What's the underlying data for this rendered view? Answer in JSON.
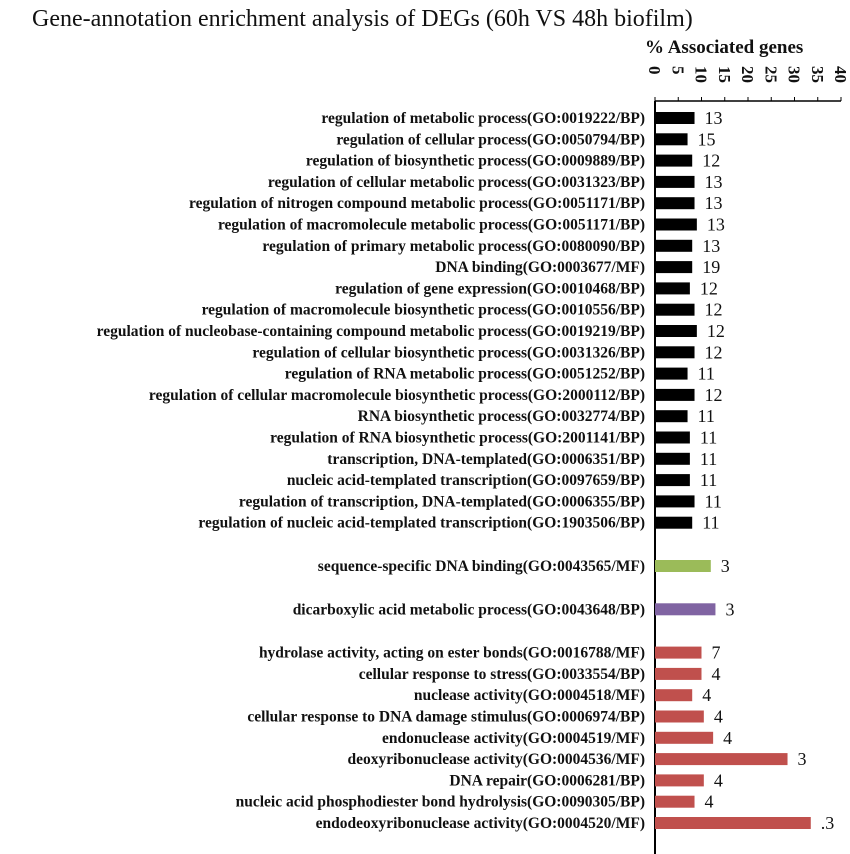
{
  "chart_data": {
    "type": "bar",
    "orientation": "horizontal",
    "title": "Gene-annotation enrichment analysis of DEGs (60h VS 48h biofilm)",
    "xlabel": "% Associated genes",
    "ylabel": "",
    "xlim": [
      0,
      40
    ],
    "x_ticks": [
      "0",
      "5",
      "10",
      "15",
      "20",
      "25",
      "30",
      "35",
      "40"
    ],
    "x_axis_position": "top",
    "grid": false,
    "legend": "none",
    "groups": [
      {
        "color": "#000000",
        "categories": [
          "regulation of metabolic process(GO:0019222/BP)",
          "regulation of cellular process(GO:0050794/BP)",
          "regulation of biosynthetic process(GO:0009889/BP)",
          "regulation of cellular metabolic process(GO:0031323/BP)",
          "regulation of nitrogen compound metabolic process(GO:0051171/BP)",
          "regulation of macromolecule metabolic process(GO:0051171/BP)",
          "regulation of primary metabolic process(GO:0080090/BP)",
          "DNA binding(GO:0003677/MF)",
          "regulation of gene expression(GO:0010468/BP)",
          "regulation of macromolecule biosynthetic process(GO:0010556/BP)",
          "regulation of nucleobase-containing compound metabolic process(GO:0019219/BP)",
          "regulation of cellular biosynthetic process(GO:0031326/BP)",
          "regulation of RNA metabolic process(GO:0051252/BP)",
          "regulation of cellular macromolecule biosynthetic process(GO:2000112/BP)",
          "RNA biosynthetic process(GO:0032774/BP)",
          "regulation of RNA biosynthetic process(GO:2001141/BP)",
          "transcription, DNA-templated(GO:0006351/BP)",
          "nucleic acid-templated transcription(GO:0097659/BP)",
          "regulation of transcription, DNA-templated(GO:0006355/BP)",
          "regulation of nucleic acid-templated transcription(GO:1903506/BP)"
        ],
        "values": [
          8.5,
          7.0,
          8.0,
          8.5,
          8.5,
          9.0,
          8.0,
          8.0,
          7.5,
          8.5,
          9.0,
          8.5,
          7.0,
          8.5,
          7.0,
          7.5,
          7.5,
          7.5,
          8.5,
          8.0
        ],
        "data_labels": [
          "13",
          "15",
          "12",
          "13",
          "13",
          "13",
          "13",
          "19",
          "12",
          "12",
          "12",
          "12",
          "11",
          "12",
          "11",
          "11",
          "11",
          "11",
          "11",
          "11"
        ]
      },
      {
        "color": "#9BBB59",
        "categories": [
          "sequence-specific DNA binding(GO:0043565/MF)"
        ],
        "values": [
          12.0
        ],
        "data_labels": [
          "3"
        ]
      },
      {
        "color": "#8064A2",
        "categories": [
          "dicarboxylic acid metabolic process(GO:0043648/BP)"
        ],
        "values": [
          13.0
        ],
        "data_labels": [
          "3"
        ]
      },
      {
        "color": "#C0504D",
        "categories": [
          "hydrolase activity, acting on ester bonds(GO:0016788/MF)",
          "cellular response to stress(GO:0033554/BP)",
          "nuclease activity(GO:0004518/MF)",
          "cellular response to DNA damage stimulus(GO:0006974/BP)",
          "endonuclease activity(GO:0004519/MF)",
          "deoxyribonuclease activity(GO:0004536/MF)",
          "DNA repair(GO:0006281/BP)",
          "nucleic acid phosphodiester bond hydrolysis(GO:0090305/BP)",
          "endodeoxyribonuclease activity(GO:0004520/MF)"
        ],
        "values": [
          10.0,
          10.0,
          8.0,
          10.5,
          12.5,
          28.5,
          10.5,
          8.5,
          33.5
        ],
        "data_labels": [
          "7",
          "4",
          "4",
          "4",
          "4",
          "3",
          "4",
          "4",
          ".3"
        ]
      }
    ]
  }
}
